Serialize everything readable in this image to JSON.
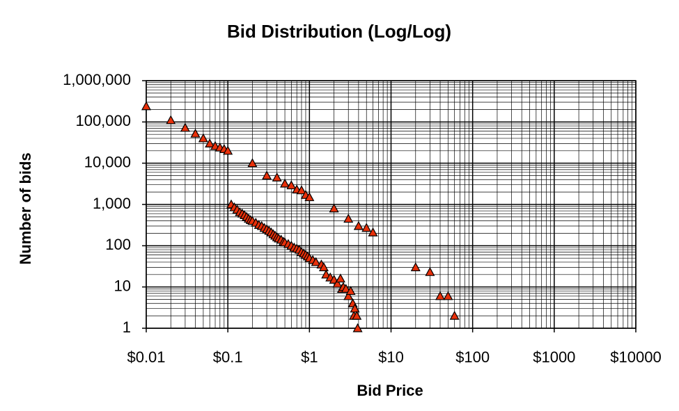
{
  "chart_data": {
    "type": "scatter",
    "title": "Bid Distribution (Log/Log)",
    "x_label": "Bid Price",
    "y_label": "Number of bids",
    "xscale": "log",
    "yscale": "log",
    "grid": true,
    "minor_grid": true,
    "xlim": [
      0.01,
      10000
    ],
    "ylim": [
      1,
      1000000
    ],
    "xticks": [
      {
        "value": 0.01,
        "label": "$0.01"
      },
      {
        "value": 0.1,
        "label": "$0.1"
      },
      {
        "value": 1,
        "label": "$1"
      },
      {
        "value": 10,
        "label": "$10"
      },
      {
        "value": 100,
        "label": "$100"
      },
      {
        "value": 1000,
        "label": "$1000"
      },
      {
        "value": 10000,
        "label": "$10000"
      }
    ],
    "yticks": [
      1,
      10,
      100,
      {
        "value": 1000,
        "label": "1,000"
      },
      {
        "value": 10000,
        "label": "10,000"
      },
      {
        "value": 100000,
        "label": "100,000"
      },
      {
        "value": 1000000,
        "label": "1,000,000"
      }
    ],
    "series": [
      {
        "color": "#e8300a",
        "x": [
          0.01,
          0.02,
          0.03,
          0.04,
          0.05,
          0.06,
          0.07,
          0.08,
          0.09,
          0.1,
          0.2,
          0.3,
          0.4,
          0.5,
          0.6,
          0.7,
          0.8,
          0.9,
          1.0,
          2,
          3,
          4,
          5,
          6,
          20,
          30,
          40,
          50,
          60,
          0.11,
          0.12,
          0.13,
          0.14,
          0.15,
          0.16,
          0.17,
          0.18,
          0.19,
          0.2,
          0.22,
          0.24,
          0.26,
          0.28,
          0.3,
          0.32,
          0.34,
          0.36,
          0.38,
          0.4,
          0.42,
          0.45,
          0.48,
          0.5,
          0.55,
          0.6,
          0.65,
          0.7,
          0.75,
          0.8,
          0.85,
          0.9,
          0.95,
          1.0,
          1.1,
          1.2,
          1.4,
          1.5,
          1.6,
          1.8,
          2.0,
          2.2,
          2.4,
          2.5,
          2.6,
          2.8,
          3.0,
          3.2,
          3.4,
          3.5,
          3.6,
          3.8,
          3.9
        ],
        "values": [
          240000,
          110000,
          72000,
          52000,
          40000,
          30000,
          26000,
          24000,
          22000,
          20000,
          10000,
          5000,
          4500,
          3200,
          2900,
          2300,
          2200,
          1700,
          1500,
          800,
          450,
          300,
          270,
          210,
          30,
          23,
          6,
          6,
          2,
          1000,
          850,
          750,
          650,
          600,
          550,
          500,
          450,
          420,
          400,
          360,
          320,
          300,
          270,
          250,
          230,
          210,
          190,
          175,
          160,
          150,
          140,
          125,
          120,
          110,
          100,
          90,
          85,
          80,
          70,
          65,
          60,
          55,
          50,
          45,
          40,
          35,
          30,
          20,
          17,
          15,
          12,
          16,
          9,
          10,
          9,
          6,
          8,
          4,
          2,
          3,
          2,
          1
        ]
      }
    ]
  }
}
